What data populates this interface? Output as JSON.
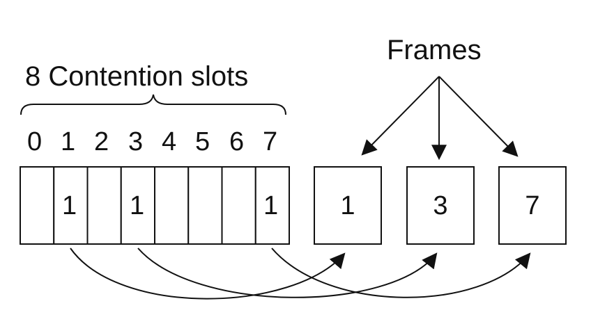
{
  "slots_label": "8 Contention slots",
  "frames_label": "Frames",
  "slot_numbers": [
    "0",
    "1",
    "2",
    "3",
    "4",
    "5",
    "6",
    "7"
  ],
  "slot_cells": [
    "",
    "1",
    "",
    "1",
    "",
    "",
    "",
    "1"
  ],
  "frames": [
    "1",
    "3",
    "7"
  ],
  "colors": {
    "ink": "#111111",
    "background": "#ffffff"
  }
}
